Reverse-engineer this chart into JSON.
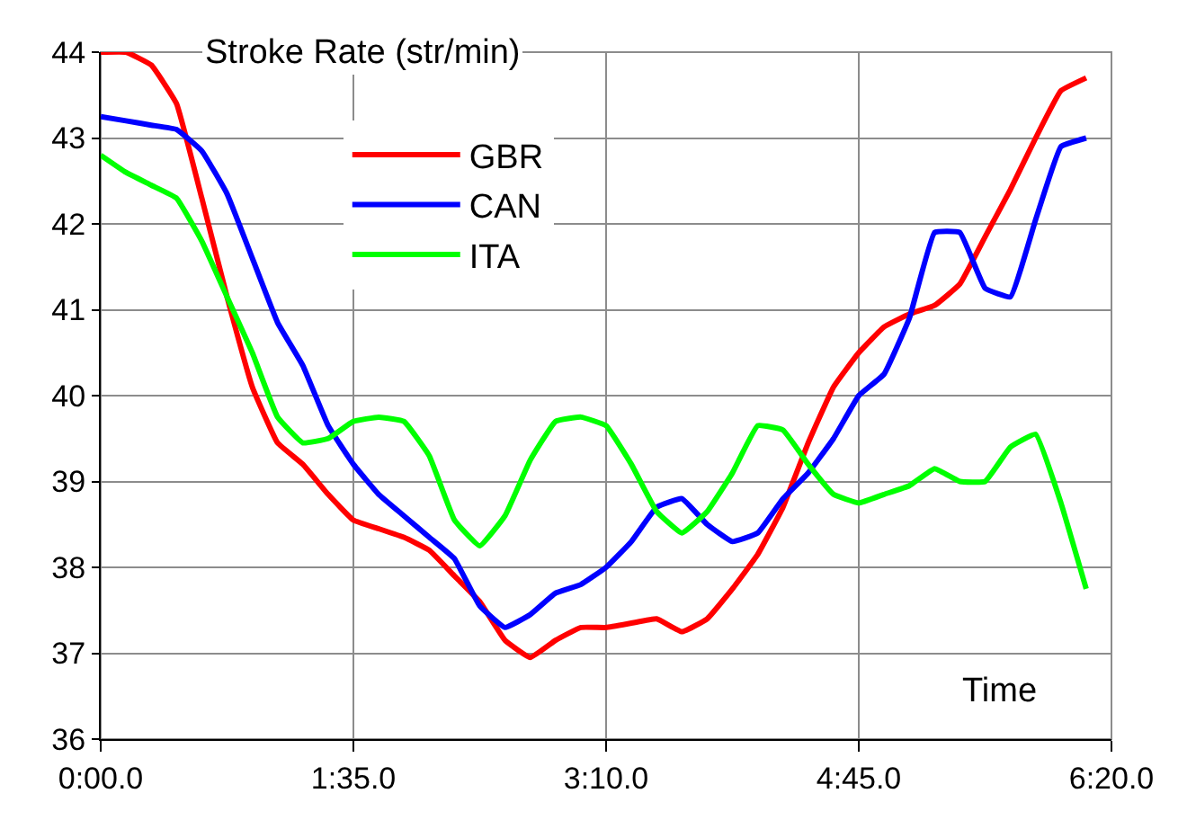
{
  "chart_data": {
    "type": "line",
    "ylabel": "Stroke Rate (str/min)",
    "xlabel": "Time",
    "categories": [
      "0:00.0",
      null,
      null,
      null,
      null,
      null,
      null,
      null,
      null,
      null,
      "1:35.0",
      null,
      null,
      null,
      null,
      null,
      null,
      null,
      null,
      null,
      "3:10.0",
      null,
      null,
      null,
      null,
      null,
      null,
      null,
      null,
      null,
      "4:45.0",
      null,
      null,
      null,
      null,
      null,
      null,
      null,
      null,
      null,
      "6:20.0"
    ],
    "ylim": [
      36,
      44
    ],
    "yticks": [
      36,
      37,
      38,
      39,
      40,
      41,
      42,
      43,
      44
    ],
    "grid": true,
    "legend": "top left",
    "marker": "none",
    "line_style": "solid",
    "series": [
      {
        "name": "GBR",
        "color": "#ff0000",
        "values": [
          44.0,
          44.0,
          43.85,
          43.4,
          42.3,
          41.15,
          40.1,
          39.45,
          39.2,
          38.85,
          38.55,
          38.45,
          38.35,
          38.2,
          37.9,
          37.6,
          37.15,
          36.95,
          37.15,
          37.3,
          37.3,
          37.35,
          37.4,
          37.25,
          37.4,
          37.75,
          38.15,
          38.7,
          39.45,
          40.1,
          40.5,
          40.8,
          40.95,
          41.05,
          41.3,
          41.85,
          42.4,
          43.0,
          43.55,
          43.7,
          null
        ]
      },
      {
        "name": "CAN",
        "color": "#0000ff",
        "values": [
          43.25,
          43.2,
          43.15,
          43.1,
          42.85,
          42.35,
          41.6,
          40.85,
          40.35,
          39.65,
          39.2,
          38.85,
          38.6,
          38.35,
          38.1,
          37.55,
          37.3,
          37.45,
          37.7,
          37.8,
          38.0,
          38.3,
          38.7,
          38.8,
          38.5,
          38.3,
          38.4,
          38.8,
          39.1,
          39.5,
          40.0,
          40.25,
          40.9,
          41.9,
          41.9,
          41.25,
          41.15,
          42.05,
          42.9,
          43.0,
          null
        ]
      },
      {
        "name": "ITA",
        "color": "#00ff00",
        "values": [
          42.8,
          42.6,
          42.45,
          42.3,
          41.8,
          41.15,
          40.5,
          39.75,
          39.45,
          39.5,
          39.7,
          39.75,
          39.7,
          39.3,
          38.55,
          38.25,
          38.6,
          39.25,
          39.7,
          39.75,
          39.65,
          39.2,
          38.65,
          38.4,
          38.65,
          39.1,
          39.65,
          39.6,
          39.2,
          38.85,
          38.75,
          38.85,
          38.95,
          39.15,
          39.0,
          39.0,
          39.4,
          39.55,
          38.75,
          37.75,
          null
        ]
      }
    ]
  }
}
